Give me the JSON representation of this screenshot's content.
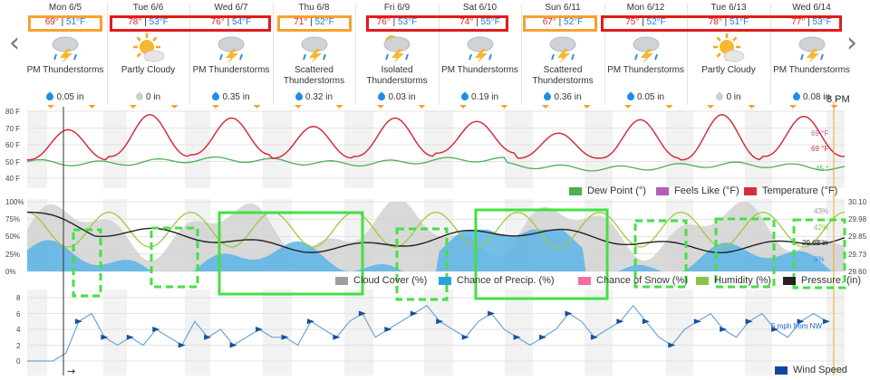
{
  "nav": {
    "prev": "‹",
    "next": "›"
  },
  "days": [
    {
      "date": "Mon 6/5",
      "hi": "69°",
      "lo": "51°F",
      "cond": "PM Thunderstorms",
      "precip": "0.05 in",
      "icon": "thunderstorm-icon",
      "wet": true
    },
    {
      "date": "Tue 6/6",
      "hi": "78°",
      "lo": "53°F",
      "cond": "Partly Cloudy",
      "precip": "0 in",
      "icon": "partly-cloudy-icon",
      "wet": false
    },
    {
      "date": "Wed 6/7",
      "hi": "76°",
      "lo": "54°F",
      "cond": "PM Thunderstorms",
      "precip": "0.35 in",
      "icon": "thunderstorm-icon",
      "wet": true
    },
    {
      "date": "Thu 6/8",
      "hi": "71°",
      "lo": "52°F",
      "cond": "Scattered Thunderstorms",
      "precip": "0.32 in",
      "icon": "thunderstorm-icon",
      "wet": true
    },
    {
      "date": "Fri 6/9",
      "hi": "76°",
      "lo": "53°F",
      "cond": "Isolated Thunderstorms",
      "precip": "0.03 in",
      "icon": "isolated-thunderstorm-icon",
      "wet": true
    },
    {
      "date": "Sat 6/10",
      "hi": "74°",
      "lo": "55°F",
      "cond": "PM Thunderstorms",
      "precip": "0.19 in",
      "icon": "thunderstorm-icon",
      "wet": true
    },
    {
      "date": "Sun 6/11",
      "hi": "67°",
      "lo": "52°F",
      "cond": "Scattered Thunderstorms",
      "precip": "0.36 in",
      "icon": "thunderstorm-icon",
      "wet": true
    },
    {
      "date": "Mon 6/12",
      "hi": "75°",
      "lo": "52°F",
      "cond": "PM Thunderstorms",
      "precip": "0.05 in",
      "icon": "thunderstorm-icon",
      "wet": true
    },
    {
      "date": "Tue 6/13",
      "hi": "78°",
      "lo": "51°F",
      "cond": "Partly Cloudy",
      "precip": "0 in",
      "icon": "partly-cloudy-icon",
      "wet": false
    },
    {
      "date": "Wed 6/14",
      "hi": "77°",
      "lo": "53°F",
      "cond": "PM Thunderstorms",
      "precip": "0.08 in",
      "icon": "thunderstorm-icon",
      "wet": true
    }
  ],
  "time_marker": "8 PM",
  "temp_chart": {
    "yticks": [
      "80 F",
      "70 F",
      "60 F",
      "50 F",
      "40 F"
    ],
    "readout": {
      "feels": "69 °F",
      "temp": "69 °F",
      "dew": "45 °"
    },
    "legend": [
      {
        "label": "Dew Point (°)",
        "color": "#4caf50"
      },
      {
        "label": "Feels Like (°F)",
        "color": "#b05fb5"
      },
      {
        "label": "Temperature (°F)",
        "color": "#d32f3f"
      }
    ]
  },
  "precip_chart": {
    "yticks": [
      "100%",
      "75%",
      "50%",
      "25%",
      "0%"
    ],
    "pressure_ticks": [
      "30.10",
      "29.98",
      "29.85",
      "29.73",
      "29.60"
    ],
    "readout": {
      "cloud": "43%",
      "humidity": "42%",
      "pressure": "29.68 in",
      "precip": "9%"
    },
    "legend": [
      {
        "label": "Cloud Cover (%)",
        "color": "#9e9e9e"
      },
      {
        "label": "Chance of Precip. (%)",
        "color": "#29a3e0"
      },
      {
        "label": "Chance of Snow (%)",
        "color": "#f06fa0"
      },
      {
        "label": "Humidity (%)",
        "color": "#8bc34a"
      },
      {
        "label": "Pressure. (in)",
        "color": "#222222"
      }
    ]
  },
  "wind_chart": {
    "yticks": [
      "8",
      "6",
      "4",
      "2",
      "0"
    ],
    "readout": "5 mph from NW",
    "arrow": "→",
    "legend": [
      {
        "label": "Wind Speed",
        "color": "#0d47a1"
      }
    ]
  },
  "colors": {
    "highlight_orange": "#f7a12e",
    "highlight_red": "#e41a1a",
    "highlight_green": "#44e044",
    "temp_line": "#d32f3f",
    "dew_line": "#4caf50",
    "precip_fill": "#5ab4e6",
    "cloud_fill": "#d0d0d0",
    "humidity_line": "#9ccc3a",
    "pressure_line": "#222222",
    "wind_line": "#6aa6d8"
  }
}
